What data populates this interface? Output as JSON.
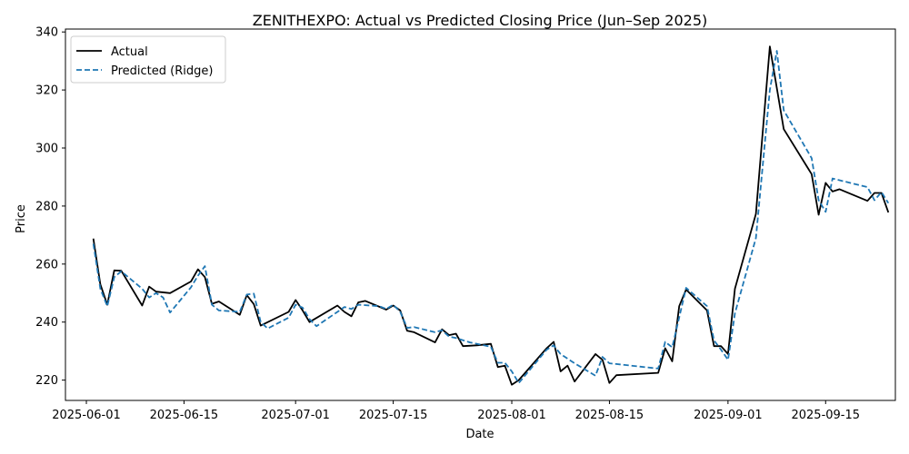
{
  "chart_data": {
    "type": "line",
    "title": "ZENITHEXPO: Actual vs Predicted Closing Price (Jun–Sep 2025)",
    "xlabel": "Date",
    "ylabel": "Price",
    "x_ticks": [
      "2025-06-01",
      "2025-06-15",
      "2025-07-01",
      "2025-07-15",
      "2025-08-01",
      "2025-08-15",
      "2025-09-01",
      "2025-09-15"
    ],
    "y_ticks": [
      220,
      240,
      260,
      280,
      300,
      320,
      340
    ],
    "xlim": [
      "2025-05-29",
      "2025-09-25"
    ],
    "ylim": [
      213,
      341
    ],
    "legend": {
      "placement": "top-left"
    },
    "grid": false,
    "series": [
      {
        "name": "Actual",
        "color": "#000000",
        "style": "solid",
        "points": [
          [
            "2025-06-02",
            268.8
          ],
          [
            "2025-06-03",
            253.0
          ],
          [
            "2025-06-04",
            246.0
          ],
          [
            "2025-06-05",
            257.8
          ],
          [
            "2025-06-06",
            257.7
          ],
          [
            "2025-06-09",
            245.7
          ],
          [
            "2025-06-10",
            252.2
          ],
          [
            "2025-06-11",
            250.5
          ],
          [
            "2025-06-13",
            250.0
          ],
          [
            "2025-06-16",
            254.0
          ],
          [
            "2025-06-17",
            258.2
          ],
          [
            "2025-06-18",
            255.5
          ],
          [
            "2025-06-19",
            246.3
          ],
          [
            "2025-06-20",
            247.1
          ],
          [
            "2025-06-23",
            242.5
          ],
          [
            "2025-06-24",
            249.3
          ],
          [
            "2025-06-25",
            246.2
          ],
          [
            "2025-06-26",
            238.8
          ],
          [
            "2025-06-30",
            243.5
          ],
          [
            "2025-07-01",
            247.6
          ],
          [
            "2025-07-02",
            244.0
          ],
          [
            "2025-07-03",
            240.0
          ],
          [
            "2025-07-07",
            245.7
          ],
          [
            "2025-07-08",
            243.5
          ],
          [
            "2025-07-09",
            242.0
          ],
          [
            "2025-07-10",
            246.8
          ],
          [
            "2025-07-11",
            247.3
          ],
          [
            "2025-07-14",
            244.3
          ],
          [
            "2025-07-15",
            245.7
          ],
          [
            "2025-07-16",
            244.0
          ],
          [
            "2025-07-17",
            237.0
          ],
          [
            "2025-07-18",
            236.5
          ],
          [
            "2025-07-21",
            233.0
          ],
          [
            "2025-07-22",
            237.5
          ],
          [
            "2025-07-23",
            235.5
          ],
          [
            "2025-07-24",
            236.0
          ],
          [
            "2025-07-25",
            231.7
          ],
          [
            "2025-07-27",
            232.0
          ],
          [
            "2025-07-29",
            232.5
          ],
          [
            "2025-07-30",
            224.5
          ],
          [
            "2025-07-31",
            225.0
          ],
          [
            "2025-08-01",
            218.4
          ],
          [
            "2025-08-02",
            220.0
          ],
          [
            "2025-08-06",
            231.0
          ],
          [
            "2025-08-07",
            233.2
          ],
          [
            "2025-08-08",
            223.0
          ],
          [
            "2025-08-09",
            225.0
          ],
          [
            "2025-08-10",
            219.5
          ],
          [
            "2025-08-13",
            229.0
          ],
          [
            "2025-08-14",
            227.0
          ],
          [
            "2025-08-15",
            219.0
          ],
          [
            "2025-08-16",
            221.7
          ],
          [
            "2025-08-22",
            222.5
          ],
          [
            "2025-08-23",
            231.0
          ],
          [
            "2025-08-24",
            226.5
          ],
          [
            "2025-08-25",
            245.5
          ],
          [
            "2025-08-26",
            251.2
          ],
          [
            "2025-08-29",
            244.0
          ],
          [
            "2025-08-30",
            231.7
          ],
          [
            "2025-08-31",
            231.7
          ],
          [
            "2025-09-01",
            229.0
          ],
          [
            "2025-09-02",
            251.5
          ],
          [
            "2025-09-05",
            277.3
          ],
          [
            "2025-09-07",
            335.0
          ],
          [
            "2025-09-09",
            306.5
          ],
          [
            "2025-09-13",
            291.0
          ],
          [
            "2025-09-14",
            277.0
          ],
          [
            "2025-09-15",
            288.0
          ],
          [
            "2025-09-16",
            285.0
          ],
          [
            "2025-09-17",
            285.8
          ],
          [
            "2025-09-21",
            281.8
          ],
          [
            "2025-09-22",
            284.5
          ],
          [
            "2025-09-23",
            284.5
          ],
          [
            "2025-09-24",
            277.8
          ]
        ]
      },
      {
        "name": "Predicted (Ridge)",
        "color": "#1f77b4",
        "style": "dashed",
        "points": [
          [
            "2025-06-02",
            267.0
          ],
          [
            "2025-06-03",
            251.5
          ],
          [
            "2025-06-04",
            245.5
          ],
          [
            "2025-06-05",
            255.5
          ],
          [
            "2025-06-06",
            257.5
          ],
          [
            "2025-06-09",
            251.5
          ],
          [
            "2025-06-10",
            248.5
          ],
          [
            "2025-06-11",
            250.0
          ],
          [
            "2025-06-12",
            248.5
          ],
          [
            "2025-06-13",
            243.3
          ],
          [
            "2025-06-16",
            252.0
          ],
          [
            "2025-06-17",
            256.0
          ],
          [
            "2025-06-18",
            259.3
          ],
          [
            "2025-06-19",
            246.0
          ],
          [
            "2025-06-20",
            244.0
          ],
          [
            "2025-06-23",
            243.5
          ],
          [
            "2025-06-24",
            249.5
          ],
          [
            "2025-06-25",
            249.8
          ],
          [
            "2025-06-26",
            240.0
          ],
          [
            "2025-06-27",
            237.8
          ],
          [
            "2025-06-30",
            241.5
          ],
          [
            "2025-07-01",
            246.0
          ],
          [
            "2025-07-02",
            245.0
          ],
          [
            "2025-07-03",
            241.0
          ],
          [
            "2025-07-04",
            238.6
          ],
          [
            "2025-07-07",
            243.5
          ],
          [
            "2025-07-08",
            245.2
          ],
          [
            "2025-07-09",
            244.5
          ],
          [
            "2025-07-10",
            246.0
          ],
          [
            "2025-07-13",
            245.5
          ],
          [
            "2025-07-14",
            244.5
          ],
          [
            "2025-07-15",
            246.0
          ],
          [
            "2025-07-16",
            243.5
          ],
          [
            "2025-07-17",
            238.0
          ],
          [
            "2025-07-18",
            238.3
          ],
          [
            "2025-07-21",
            236.5
          ],
          [
            "2025-07-22",
            237.2
          ],
          [
            "2025-07-23",
            235.0
          ],
          [
            "2025-07-24",
            234.5
          ],
          [
            "2025-07-26",
            233.0
          ],
          [
            "2025-07-28",
            232.0
          ],
          [
            "2025-07-29",
            231.5
          ],
          [
            "2025-07-30",
            226.0
          ],
          [
            "2025-07-31",
            226.0
          ],
          [
            "2025-08-01",
            223.0
          ],
          [
            "2025-08-02",
            219.0
          ],
          [
            "2025-08-06",
            230.5
          ],
          [
            "2025-08-07",
            232.0
          ],
          [
            "2025-08-08",
            229.0
          ],
          [
            "2025-08-10",
            225.8
          ],
          [
            "2025-08-13",
            221.5
          ],
          [
            "2025-08-14",
            228.0
          ],
          [
            "2025-08-15",
            225.8
          ],
          [
            "2025-08-22",
            224.0
          ],
          [
            "2025-08-23",
            233.2
          ],
          [
            "2025-08-24",
            231.3
          ],
          [
            "2025-08-26",
            251.8
          ],
          [
            "2025-08-29",
            245.5
          ],
          [
            "2025-08-30",
            233.7
          ],
          [
            "2025-08-31",
            230.5
          ],
          [
            "2025-09-01",
            227.0
          ],
          [
            "2025-09-02",
            243.0
          ],
          [
            "2025-09-05",
            269.0
          ],
          [
            "2025-09-07",
            320.0
          ],
          [
            "2025-09-08",
            333.5
          ],
          [
            "2025-09-09",
            313.0
          ],
          [
            "2025-09-13",
            296.5
          ],
          [
            "2025-09-14",
            282.0
          ],
          [
            "2025-09-15",
            278.0
          ],
          [
            "2025-09-16",
            289.5
          ],
          [
            "2025-09-21",
            286.5
          ],
          [
            "2025-09-22",
            282.0
          ],
          [
            "2025-09-23",
            284.8
          ],
          [
            "2025-09-24",
            281.0
          ]
        ]
      }
    ]
  }
}
